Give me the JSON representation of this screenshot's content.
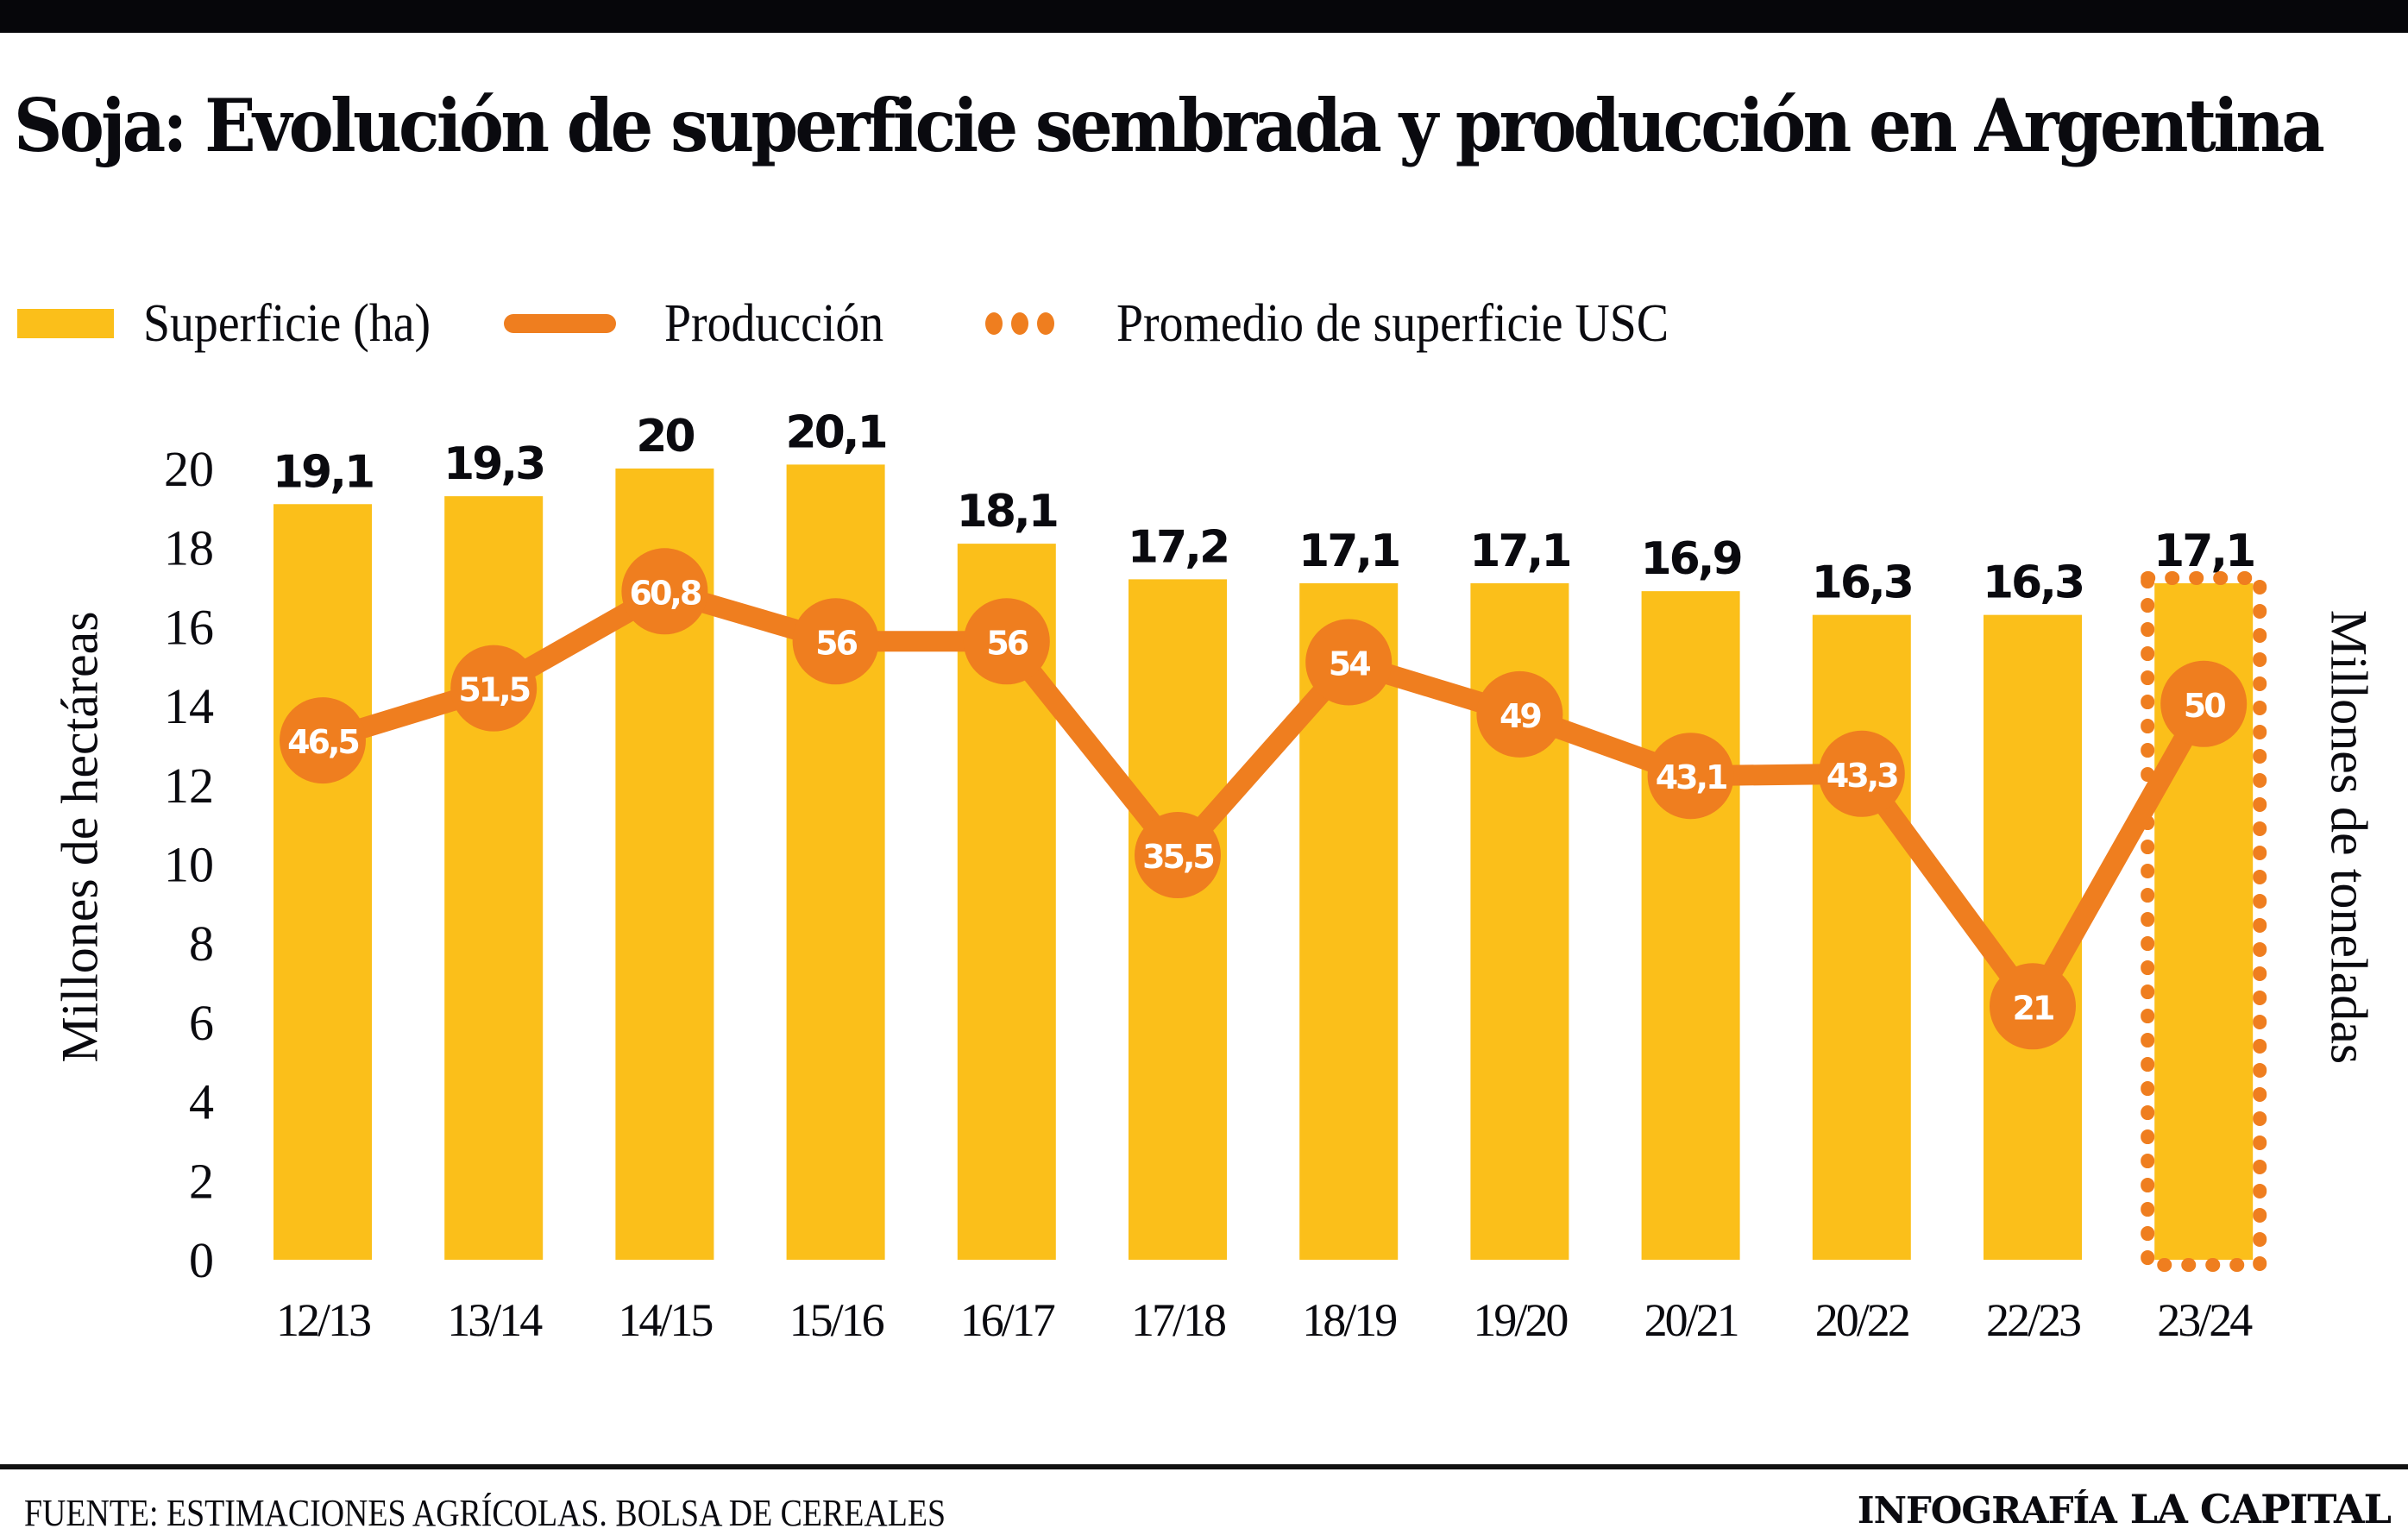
{
  "header": {
    "title": "Soja: Evolución de superficie sembrada y producción en Argentina"
  },
  "legend": [
    {
      "label": "Superficie (ha)",
      "icon": "yellow-bar-swatch"
    },
    {
      "label": "Producción",
      "icon": "orange-line-swatch"
    },
    {
      "label": "Promedio de superficie USC",
      "icon": "orange-dotted-swatch"
    }
  ],
  "axes": {
    "left_label": "Millones de hectáreas",
    "right_label": "Millones de toneladas"
  },
  "footer": {
    "source": "FUENTE: ESTIMACIONES AGRÍCOLAS. BOLSA DE CEREALES",
    "credit_prefix": "INFOGRAFÍA",
    "credit_brand": "LA CAPITAL"
  },
  "colors": {
    "bar": "#fbbf1a",
    "line": "#ef7e1f",
    "text": "#0a0a0f",
    "point_label": "#ffffff"
  },
  "chart_data": {
    "type": "bar",
    "title": "Soja: Evolución de superficie sembrada y producción en Argentina",
    "xlabel": "",
    "ylabel": "Millones de hectáreas",
    "y2label": "Millones de toneladas",
    "ylim": [
      0,
      20
    ],
    "yticks": [
      0,
      2,
      4,
      6,
      8,
      10,
      12,
      14,
      16,
      18,
      20
    ],
    "grid": false,
    "legend_position": "top-left",
    "categories": [
      "12/13",
      "13/14",
      "14/15",
      "15/16",
      "16/17",
      "17/18",
      "18/19",
      "19/20",
      "20/21",
      "20/22",
      "22/23",
      "23/24"
    ],
    "series": [
      {
        "name": "Superficie (ha)",
        "type": "bar",
        "axis": "left",
        "values": [
          19.1,
          19.3,
          20,
          20.1,
          18.1,
          17.2,
          17.1,
          17.1,
          16.9,
          16.3,
          16.3,
          17.1
        ],
        "labels": [
          "19,1",
          "19,3",
          "20",
          "20,1",
          "18,1",
          "17,2",
          "17,1",
          "17,1",
          "16,9",
          "16,3",
          "16,3",
          "17,1"
        ]
      },
      {
        "name": "Producción",
        "type": "line",
        "axis": "right",
        "values": [
          46.5,
          51.5,
          60.8,
          56,
          56,
          35.5,
          54,
          49,
          43.1,
          43.3,
          21,
          50
        ],
        "labels": [
          "46,5",
          "51,5",
          "60,8",
          "56",
          "56",
          "35,5",
          "54",
          "49",
          "43,1",
          "43,3",
          "21",
          "50"
        ]
      }
    ],
    "highlight": {
      "name": "Promedio de superficie USC",
      "category": "23/24",
      "style": "dotted-outline"
    }
  }
}
